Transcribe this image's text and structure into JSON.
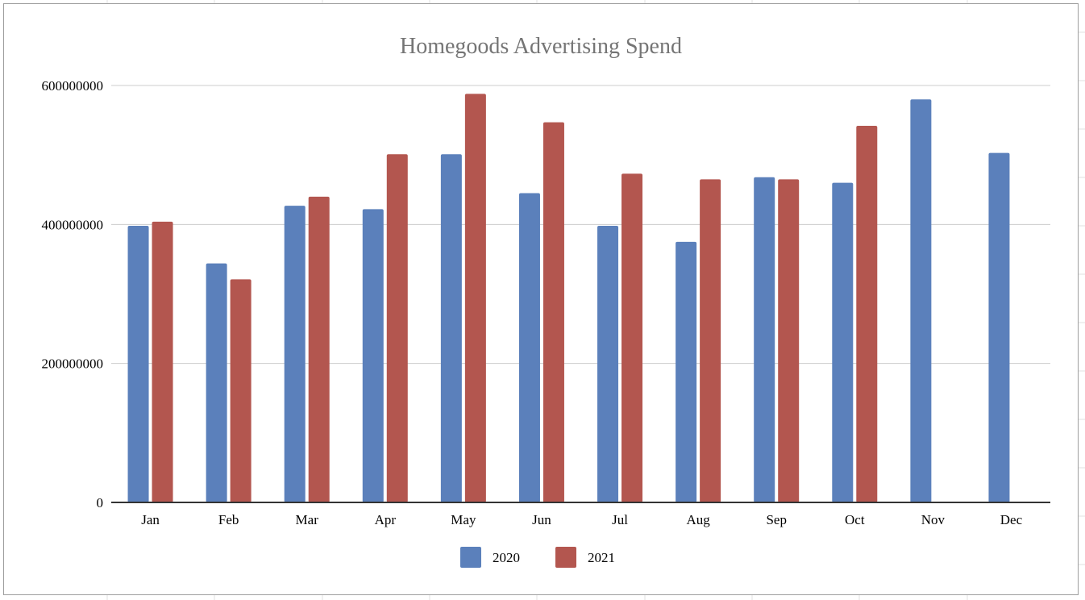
{
  "chart_data": {
    "type": "bar",
    "title": "Homegoods Advertising Spend",
    "xlabel": "",
    "ylabel": "",
    "categories": [
      "Jan",
      "Feb",
      "Mar",
      "Apr",
      "May",
      "Jun",
      "Jul",
      "Aug",
      "Sep",
      "Oct",
      "Nov",
      "Dec"
    ],
    "series": [
      {
        "name": "2020",
        "color": "#5b80bb",
        "values": [
          398000000,
          344000000,
          427000000,
          422000000,
          501000000,
          445000000,
          398000000,
          375000000,
          468000000,
          460000000,
          580000000,
          503000000
        ]
      },
      {
        "name": "2021",
        "color": "#b3564f",
        "values": [
          404000000,
          321000000,
          440000000,
          501000000,
          588000000,
          547000000,
          473000000,
          465000000,
          465000000,
          542000000,
          null,
          null
        ]
      }
    ],
    "ylim": [
      0,
      600000000
    ],
    "yticks": [
      "0",
      "200000000",
      "400000000",
      "600000000"
    ],
    "ytick_values": [
      0,
      200000000,
      400000000,
      600000000
    ],
    "grid": true,
    "legend_position": "bottom"
  }
}
